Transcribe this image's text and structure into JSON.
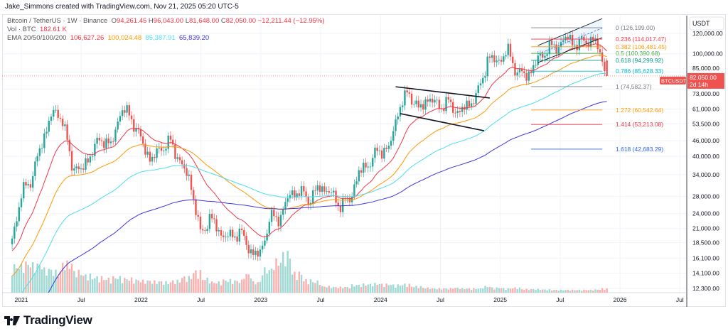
{
  "header": {
    "credit": "Jake_Simmons created with TradingView.com, Nov 21, 2025 05:20 UTC-5"
  },
  "legend": {
    "symbol": "Bitcoin / TetherUS · 1W · Binance",
    "o_label": "O",
    "o": "94,261.45",
    "h_label": "H",
    "h": "96,043.00",
    "l_label": "L",
    "l": "81,648.00",
    "c_label": "C",
    "c": "82,050.00",
    "change": "−12,211.44 (−12.95%)",
    "vol_label": "Vol · BTC",
    "vol": "182.61 K",
    "ema_label": "EMA 20/50/100/200",
    "ema20": "106,627.26",
    "ema50": "100,024.48",
    "ema100": "85,387.91",
    "ema200": "65,839.20"
  },
  "brand": {
    "name": "TradingView"
  },
  "colors": {
    "up": "#26a69a",
    "down": "#ef5350",
    "ema20": "#f23645",
    "ema50": "#ff9800",
    "ema100": "#4ddcf0",
    "ema200": "#3d35e0"
  },
  "chart_data": {
    "type": "candlestick",
    "scale": "log",
    "interval": "1W",
    "currency": "USDT",
    "symbol_tag": "BTCUSDT",
    "last_price": "82,050.00",
    "countdown": "2d 14h",
    "last_candle": {
      "o": 94261.45,
      "h": 96043.0,
      "l": 81648.0,
      "c": 82050.0
    },
    "start_open": 19200,
    "monthly_close_approx": [
      29000,
      33100,
      45200,
      58800,
      57700,
      37300,
      35000,
      41500,
      47100,
      43800,
      61300,
      57000,
      46300,
      38500,
      43200,
      45500,
      37700,
      31800,
      19900,
      23300,
      20000,
      19400,
      20500,
      17200,
      16500,
      23100,
      23100,
      28500,
      29200,
      27200,
      30500,
      29200,
      26000,
      27000,
      34600,
      37700,
      42300,
      42600,
      61200,
      71300,
      60700,
      67500,
      62700,
      64600,
      59000,
      63300,
      70300,
      96400,
      93400,
      102400,
      84300,
      82500,
      94200,
      104600,
      107100,
      115700,
      108200,
      114000,
      109600,
      82050
    ],
    "monthly_weekly_volume_k_approx": [
      380,
      420,
      400,
      330,
      300,
      420,
      300,
      250,
      220,
      200,
      220,
      200,
      180,
      170,
      160,
      150,
      170,
      220,
      300,
      200,
      150,
      180,
      170,
      260,
      150,
      330,
      450,
      550,
      280,
      180,
      160,
      90,
      80,
      80,
      110,
      120,
      130,
      120,
      110,
      120,
      90,
      70,
      60,
      60,
      70,
      60,
      60,
      90,
      70,
      60,
      70,
      50,
      50,
      45,
      40,
      40,
      40,
      40,
      45,
      60
    ],
    "x_ticks": [
      "2021",
      "Jul",
      "2022",
      "Jul",
      "2023",
      "Jul",
      "2024",
      "Jul",
      "2025",
      "Jul",
      "2026",
      "Jul"
    ],
    "y_ticks": [
      "120,000.00",
      "100,000.00",
      "85,000.00",
      "73,000.00",
      "61,000.00",
      "53,500.00",
      "46,000.00",
      "40,000.00",
      "34,000.00",
      "28,000.00",
      "24,000.00",
      "21,000.00",
      "18,500.00",
      "16,100.00",
      "14,100.00",
      "12,300.00"
    ],
    "y_tick_values": [
      120000,
      100000,
      85000,
      73000,
      61000,
      53500,
      46000,
      40000,
      34000,
      28000,
      24000,
      21000,
      18500,
      16100,
      14100,
      12300
    ],
    "fib_levels": [
      {
        "label": "0 (126,199.00)",
        "price": 126199,
        "color": "#787b86"
      },
      {
        "label": "0.236 (114,017.47)",
        "price": 114017.47,
        "color": "#f23645"
      },
      {
        "label": "0.382 (106,481.45)",
        "price": 106481.45,
        "color": "#ff9800"
      },
      {
        "label": "0.5 (100,390.68)",
        "price": 100390.68,
        "color": "#4caf50"
      },
      {
        "label": "0.618 (94,299.92)",
        "price": 94299.92,
        "color": "#089981"
      },
      {
        "label": "0.786 (85,628.33)",
        "price": 85628.33,
        "color": "#00bcd4"
      },
      {
        "label": "1 (74,582.37)",
        "price": 74582.37,
        "color": "#787b86"
      },
      {
        "label": "1.272 (60,542.64)",
        "price": 60542.64,
        "color": "#ff9800"
      },
      {
        "label": "1.414 (53,213.08)",
        "price": 53213.08,
        "color": "#f23645"
      },
      {
        "label": "1.618 (42,683.29)",
        "price": 42683.29,
        "color": "#2962ff"
      }
    ],
    "trendlines_week_price": [
      {
        "name": "wedge-upper",
        "from": [
          163,
          74500
        ],
        "to": [
          204,
          67400
        ]
      },
      {
        "name": "wedge-lower",
        "from": [
          165,
          58600
        ],
        "to": [
          201.5,
          50300
        ]
      },
      {
        "name": "channel-upper",
        "from": [
          225,
          107700
        ],
        "to": [
          253,
          137000
        ]
      },
      {
        "name": "channel-lower",
        "from": [
          225,
          92500
        ],
        "to": [
          253,
          115500
        ]
      }
    ]
  }
}
